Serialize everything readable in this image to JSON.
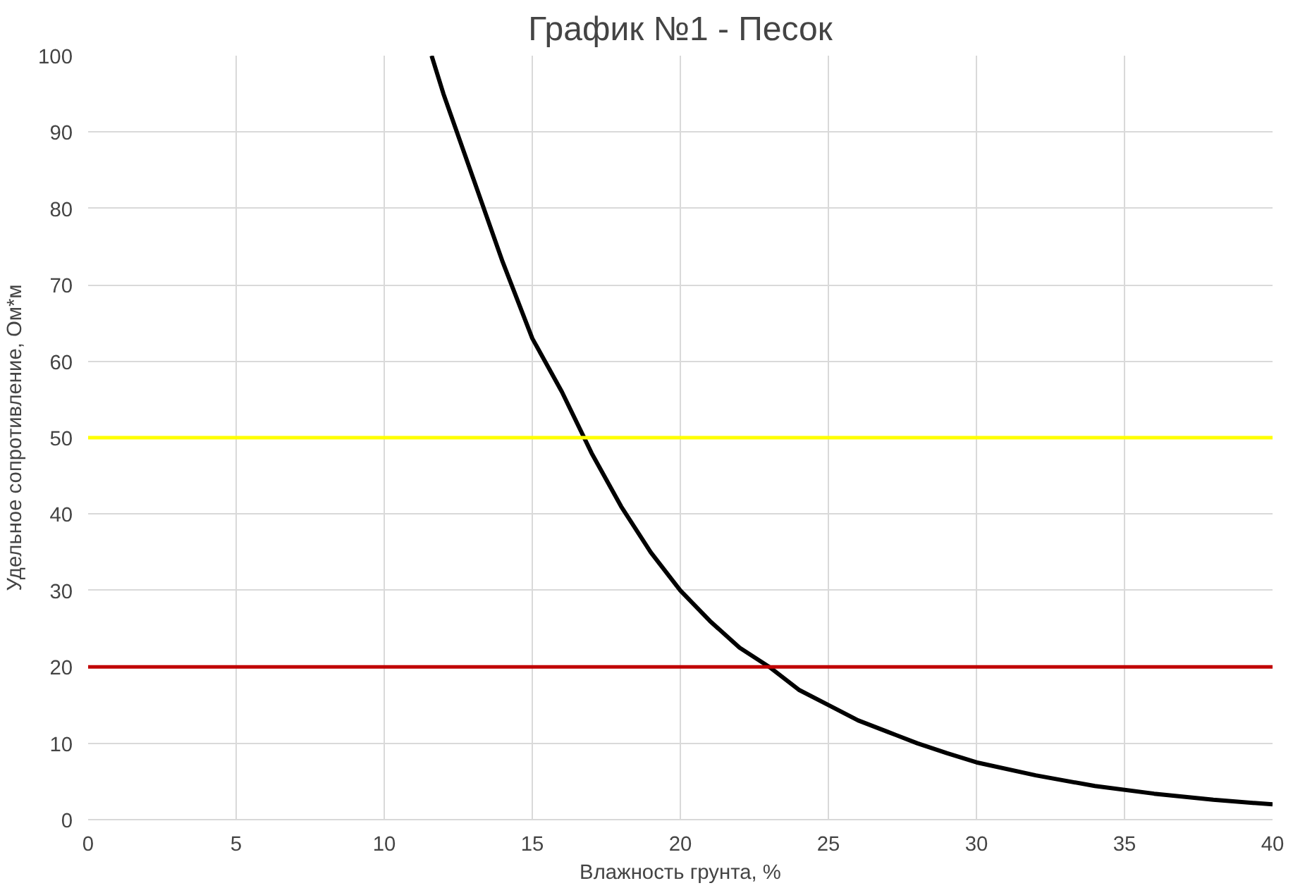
{
  "chart_data": {
    "type": "line",
    "title": "График №1 - Песок",
    "xlabel": "Влажность грунта, %",
    "ylabel": "Удельное сопротивление, Ом*м",
    "x": [
      11.6,
      12,
      13,
      14,
      15,
      16,
      17,
      18,
      19,
      20,
      21,
      22,
      23,
      24,
      25,
      26,
      27,
      28,
      29,
      30,
      32,
      34,
      36,
      38,
      40
    ],
    "series": [
      {
        "color": "#000000",
        "values": [
          100,
          95,
          84,
          73,
          63,
          56,
          48,
          41,
          35,
          30,
          26,
          22.5,
          20,
          17,
          15,
          13,
          11.5,
          10,
          8.7,
          7.5,
          5.8,
          4.4,
          3.4,
          2.6,
          2
        ]
      }
    ],
    "xlim": [
      0,
      40
    ],
    "xticks": [
      0,
      5,
      10,
      15,
      20,
      25,
      30,
      35,
      40
    ],
    "ylim": [
      0,
      100
    ],
    "yticks": [
      0,
      10,
      20,
      30,
      40,
      50,
      60,
      70,
      80,
      90,
      100
    ],
    "ref_lines": [
      {
        "axis": "y",
        "value": 50,
        "color": "#ffff00"
      },
      {
        "axis": "y",
        "value": 20,
        "color": "#c00000"
      }
    ],
    "grid": true,
    "marker": "none",
    "line_style": "solid"
  }
}
